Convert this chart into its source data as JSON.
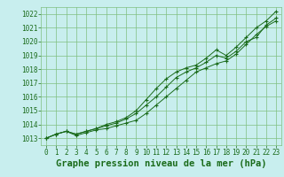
{
  "title": "Graphe pression niveau de la mer (hPa)",
  "x_values": [
    0,
    1,
    2,
    3,
    4,
    5,
    6,
    7,
    8,
    9,
    10,
    11,
    12,
    13,
    14,
    15,
    16,
    17,
    18,
    19,
    20,
    21,
    22,
    23
  ],
  "line1": [
    1013.0,
    1013.3,
    1013.5,
    1013.2,
    1013.4,
    1013.6,
    1013.7,
    1013.9,
    1014.1,
    1014.3,
    1014.8,
    1015.4,
    1016.0,
    1016.6,
    1017.2,
    1017.8,
    1018.1,
    1018.4,
    1018.6,
    1019.1,
    1019.8,
    1020.5,
    1021.1,
    1021.5
  ],
  "line2": [
    1013.0,
    1013.3,
    1013.5,
    1013.3,
    1013.5,
    1013.7,
    1013.9,
    1014.1,
    1014.4,
    1014.8,
    1015.4,
    1016.0,
    1016.7,
    1017.4,
    1017.8,
    1018.1,
    1018.5,
    1019.0,
    1018.8,
    1019.3,
    1020.0,
    1020.3,
    1021.2,
    1021.7
  ],
  "line3": [
    1013.0,
    1013.3,
    1013.5,
    1013.3,
    1013.5,
    1013.7,
    1014.0,
    1014.2,
    1014.5,
    1015.0,
    1015.8,
    1016.6,
    1017.3,
    1017.8,
    1018.1,
    1018.3,
    1018.8,
    1019.4,
    1019.0,
    1019.6,
    1020.3,
    1021.0,
    1021.5,
    1022.2
  ],
  "line_color": "#1a6b1a",
  "marker_color": "#1a6b1a",
  "bg_color": "#c8eeee",
  "grid_color": "#80c080",
  "ylim_min": 1012.5,
  "ylim_max": 1022.5,
  "xlim_min": -0.5,
  "xlim_max": 23.5,
  "yticks": [
    1013,
    1014,
    1015,
    1016,
    1017,
    1018,
    1019,
    1020,
    1021,
    1022
  ],
  "xticks": [
    0,
    1,
    2,
    3,
    4,
    5,
    6,
    7,
    8,
    9,
    10,
    11,
    12,
    13,
    14,
    15,
    16,
    17,
    18,
    19,
    20,
    21,
    22,
    23
  ],
  "title_fontsize": 7.5,
  "tick_fontsize": 5.5,
  "tick_color": "#1a6b1a",
  "title_color": "#1a6b1a"
}
